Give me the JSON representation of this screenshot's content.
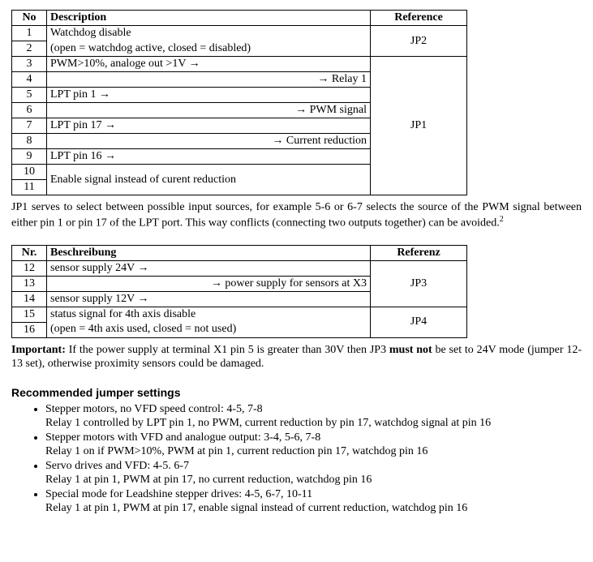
{
  "table1": {
    "headers": {
      "no": "No",
      "desc": "Description",
      "ref": "Reference"
    },
    "rows": [
      {
        "no": "1",
        "desc": "Watchdog disable"
      },
      {
        "no": "2",
        "desc": "(open = watchdog active, closed = disabled)"
      },
      {
        "no": "3",
        "desc": "PWM>10%, analoge out >1V →"
      },
      {
        "no": "4",
        "desc": "→ Relay 1"
      },
      {
        "no": "5",
        "desc": "LPT pin 1 →"
      },
      {
        "no": "6",
        "desc": "→ PWM signal"
      },
      {
        "no": "7",
        "desc": "LPT pin 17 →"
      },
      {
        "no": "8",
        "desc": "→ Current reduction"
      },
      {
        "no": "9",
        "desc": "LPT pin 16 →"
      },
      {
        "no": "10",
        "desc": ""
      },
      {
        "no": "11",
        "desc": ""
      }
    ],
    "merged_10_11_desc": "Enable signal instead of curent reduction",
    "ref_1_2": "JP2",
    "ref_3_11": "JP1"
  },
  "para1_pre": "JP1 serves to select between possible input sources, for example 5-6 or 6-7 selects the source of the PWM signal between either pin 1 or pin 17 of the LPT port. This way conflicts (connecting two outputs together) can be avoided.",
  "footnote1": "2",
  "table2": {
    "headers": {
      "no": "Nr.",
      "desc": "Beschreibung",
      "ref": "Referenz"
    },
    "rows": [
      {
        "no": "12",
        "desc": "sensor supply 24V →"
      },
      {
        "no": "13",
        "desc": "→ power supply for sensors at X3"
      },
      {
        "no": "14",
        "desc": "sensor supply 12V →"
      },
      {
        "no": "15",
        "desc": "status signal for 4th axis disable"
      },
      {
        "no": "16",
        "desc": "(open = 4th axis used, closed = not used)"
      }
    ],
    "ref_12_14": "JP3",
    "ref_15_16": "JP4"
  },
  "important_label": "Important:",
  "important_pre": " If the power supply at terminal X1 pin 5 is greater than 30V then JP3 ",
  "important_bold": "must not",
  "important_post": " be set to 24V mode (jumper 12-13 set), otherwise proximity sensors could be damaged.",
  "heading": "Recommended jumper settings",
  "bullets": [
    {
      "line1": "Stepper motors, no VFD speed control: 4-5, 7-8",
      "line2": "Relay 1 controlled by LPT pin 1, no PWM, current reduction by pin 17, watchdog signal at pin 16"
    },
    {
      "line1": "Stepper motors with VFD and analogue output:  3-4, 5-6, 7-8",
      "line2": "Relay 1 on if PWM>10%, PWM at pin 1, current reduction pin 17, watchdog pin 16"
    },
    {
      "line1": "Servo drives and VFD: 4-5. 6-7",
      "line2": "Relay 1 at pin 1, PWM at pin 17, no current reduction, watchdog pin 16"
    },
    {
      "line1": "Special mode for Leadshine stepper drives: 4-5, 6-7, 10-11",
      "line2": "Relay 1 at pin 1, PWM at pin 17, enable signal instead of current reduction, watchdog pin 16"
    }
  ]
}
